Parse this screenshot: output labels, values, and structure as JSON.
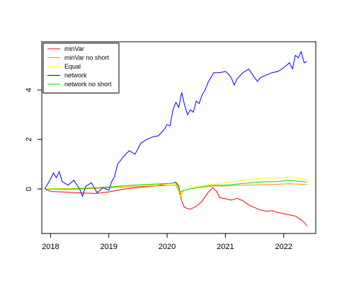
{
  "chart_data": {
    "type": "line",
    "title": "",
    "xlabel": "",
    "ylabel": "",
    "xlim": [
      2017.85,
      2022.55
    ],
    "ylim": [
      -1.8,
      5.95
    ],
    "x_ticks": [
      "2018",
      "2019",
      "2020",
      "2021",
      "2022"
    ],
    "x_tick_values": [
      2018,
      2019,
      2020,
      2021,
      2022
    ],
    "y_ticks": [
      "0",
      "2",
      "4"
    ],
    "y_tick_values": [
      0,
      2,
      4
    ],
    "grid": false,
    "legend_position": "top-left",
    "series": [
      {
        "name": "minVar",
        "color": "#ff0000",
        "points": [
          [
            2017.9,
            0.0
          ],
          [
            2018.0,
            -0.1
          ],
          [
            2018.2,
            -0.12
          ],
          [
            2018.4,
            -0.15
          ],
          [
            2018.6,
            -0.17
          ],
          [
            2018.8,
            -0.18
          ],
          [
            2019.0,
            -0.12
          ],
          [
            2019.2,
            -0.03
          ],
          [
            2019.4,
            0.04
          ],
          [
            2019.6,
            0.08
          ],
          [
            2019.8,
            0.12
          ],
          [
            2020.0,
            0.2
          ],
          [
            2020.1,
            0.24
          ],
          [
            2020.15,
            0.28
          ],
          [
            2020.2,
            0.12
          ],
          [
            2020.25,
            -0.5
          ],
          [
            2020.3,
            -0.75
          ],
          [
            2020.4,
            -0.82
          ],
          [
            2020.5,
            -0.7
          ],
          [
            2020.6,
            -0.5
          ],
          [
            2020.7,
            -0.15
          ],
          [
            2020.78,
            0.05
          ],
          [
            2020.85,
            -0.1
          ],
          [
            2020.9,
            -0.35
          ],
          [
            2021.0,
            -0.4
          ],
          [
            2021.1,
            -0.45
          ],
          [
            2021.2,
            -0.38
          ],
          [
            2021.3,
            -0.48
          ],
          [
            2021.4,
            -0.65
          ],
          [
            2021.5,
            -0.75
          ],
          [
            2021.6,
            -0.85
          ],
          [
            2021.7,
            -0.9
          ],
          [
            2021.8,
            -0.88
          ],
          [
            2021.9,
            -0.95
          ],
          [
            2022.0,
            -1.0
          ],
          [
            2022.1,
            -1.05
          ],
          [
            2022.2,
            -1.1
          ],
          [
            2022.3,
            -1.25
          ],
          [
            2022.35,
            -1.35
          ],
          [
            2022.4,
            -1.5
          ]
        ]
      },
      {
        "name": "minVar no short",
        "color": "#ff8c1a",
        "points": [
          [
            2017.9,
            0.0
          ],
          [
            2018.3,
            -0.02
          ],
          [
            2018.8,
            0.02
          ],
          [
            2019.2,
            0.07
          ],
          [
            2019.6,
            0.11
          ],
          [
            2020.0,
            0.14
          ],
          [
            2020.15,
            0.16
          ],
          [
            2020.22,
            -0.25
          ],
          [
            2020.3,
            -0.05
          ],
          [
            2020.5,
            0.05
          ],
          [
            2020.8,
            0.12
          ],
          [
            2021.0,
            0.12
          ],
          [
            2021.3,
            0.15
          ],
          [
            2021.6,
            0.17
          ],
          [
            2021.9,
            0.19
          ],
          [
            2022.1,
            0.21
          ],
          [
            2022.4,
            0.18
          ]
        ]
      },
      {
        "name": "Equal",
        "color": "#ffff00",
        "points": [
          [
            2017.9,
            0.0
          ],
          [
            2018.3,
            0.02
          ],
          [
            2018.8,
            0.05
          ],
          [
            2019.2,
            0.1
          ],
          [
            2019.6,
            0.15
          ],
          [
            2020.0,
            0.2
          ],
          [
            2020.15,
            0.22
          ],
          [
            2020.22,
            -0.3
          ],
          [
            2020.3,
            -0.05
          ],
          [
            2020.5,
            0.1
          ],
          [
            2020.8,
            0.2
          ],
          [
            2021.0,
            0.25
          ],
          [
            2021.3,
            0.35
          ],
          [
            2021.6,
            0.42
          ],
          [
            2021.9,
            0.45
          ],
          [
            2022.1,
            0.48
          ],
          [
            2022.3,
            0.42
          ],
          [
            2022.4,
            0.35
          ]
        ]
      },
      {
        "name": "network",
        "color": "#0000ff",
        "points": [
          [
            2017.9,
            0.0
          ],
          [
            2018.0,
            0.4
          ],
          [
            2018.05,
            0.65
          ],
          [
            2018.1,
            0.45
          ],
          [
            2018.15,
            0.7
          ],
          [
            2018.2,
            0.3
          ],
          [
            2018.3,
            0.15
          ],
          [
            2018.4,
            0.35
          ],
          [
            2018.5,
            0.0
          ],
          [
            2018.55,
            -0.3
          ],
          [
            2018.6,
            0.1
          ],
          [
            2018.7,
            0.25
          ],
          [
            2018.8,
            -0.15
          ],
          [
            2018.9,
            0.05
          ],
          [
            2019.0,
            -0.05
          ],
          [
            2019.05,
            0.3
          ],
          [
            2019.1,
            0.5
          ],
          [
            2019.15,
            1.0
          ],
          [
            2019.25,
            1.3
          ],
          [
            2019.35,
            1.55
          ],
          [
            2019.45,
            1.4
          ],
          [
            2019.55,
            1.85
          ],
          [
            2019.65,
            2.0
          ],
          [
            2019.75,
            2.1
          ],
          [
            2019.85,
            2.15
          ],
          [
            2019.95,
            2.4
          ],
          [
            2020.0,
            2.6
          ],
          [
            2020.05,
            2.55
          ],
          [
            2020.1,
            3.2
          ],
          [
            2020.15,
            3.5
          ],
          [
            2020.2,
            3.3
          ],
          [
            2020.25,
            3.9
          ],
          [
            2020.3,
            3.4
          ],
          [
            2020.35,
            3.0
          ],
          [
            2020.4,
            3.2
          ],
          [
            2020.45,
            3.1
          ],
          [
            2020.5,
            3.55
          ],
          [
            2020.55,
            3.45
          ],
          [
            2020.6,
            3.8
          ],
          [
            2020.65,
            4.0
          ],
          [
            2020.7,
            4.3
          ],
          [
            2020.75,
            4.5
          ],
          [
            2020.8,
            4.7
          ],
          [
            2020.9,
            4.7
          ],
          [
            2021.0,
            4.75
          ],
          [
            2021.05,
            4.65
          ],
          [
            2021.1,
            4.5
          ],
          [
            2021.15,
            4.2
          ],
          [
            2021.2,
            4.45
          ],
          [
            2021.3,
            4.7
          ],
          [
            2021.4,
            4.85
          ],
          [
            2021.5,
            4.5
          ],
          [
            2021.55,
            4.35
          ],
          [
            2021.6,
            4.5
          ],
          [
            2021.7,
            4.6
          ],
          [
            2021.8,
            4.7
          ],
          [
            2021.9,
            4.75
          ],
          [
            2022.0,
            4.9
          ],
          [
            2022.1,
            5.1
          ],
          [
            2022.15,
            4.85
          ],
          [
            2022.2,
            5.4
          ],
          [
            2022.25,
            5.3
          ],
          [
            2022.3,
            5.55
          ],
          [
            2022.35,
            5.1
          ],
          [
            2022.4,
            5.15
          ]
        ]
      },
      {
        "name": "network no short",
        "color": "#00dd00",
        "points": [
          [
            2017.9,
            0.0
          ],
          [
            2018.3,
            0.0
          ],
          [
            2018.8,
            0.05
          ],
          [
            2019.0,
            0.08
          ],
          [
            2019.4,
            0.15
          ],
          [
            2019.8,
            0.2
          ],
          [
            2020.0,
            0.22
          ],
          [
            2020.15,
            0.25
          ],
          [
            2020.22,
            -0.12
          ],
          [
            2020.3,
            -0.05
          ],
          [
            2020.5,
            0.05
          ],
          [
            2020.8,
            0.15
          ],
          [
            2021.0,
            0.15
          ],
          [
            2021.3,
            0.22
          ],
          [
            2021.6,
            0.28
          ],
          [
            2021.9,
            0.3
          ],
          [
            2022.1,
            0.35
          ],
          [
            2022.3,
            0.3
          ],
          [
            2022.4,
            0.28
          ]
        ]
      }
    ]
  }
}
